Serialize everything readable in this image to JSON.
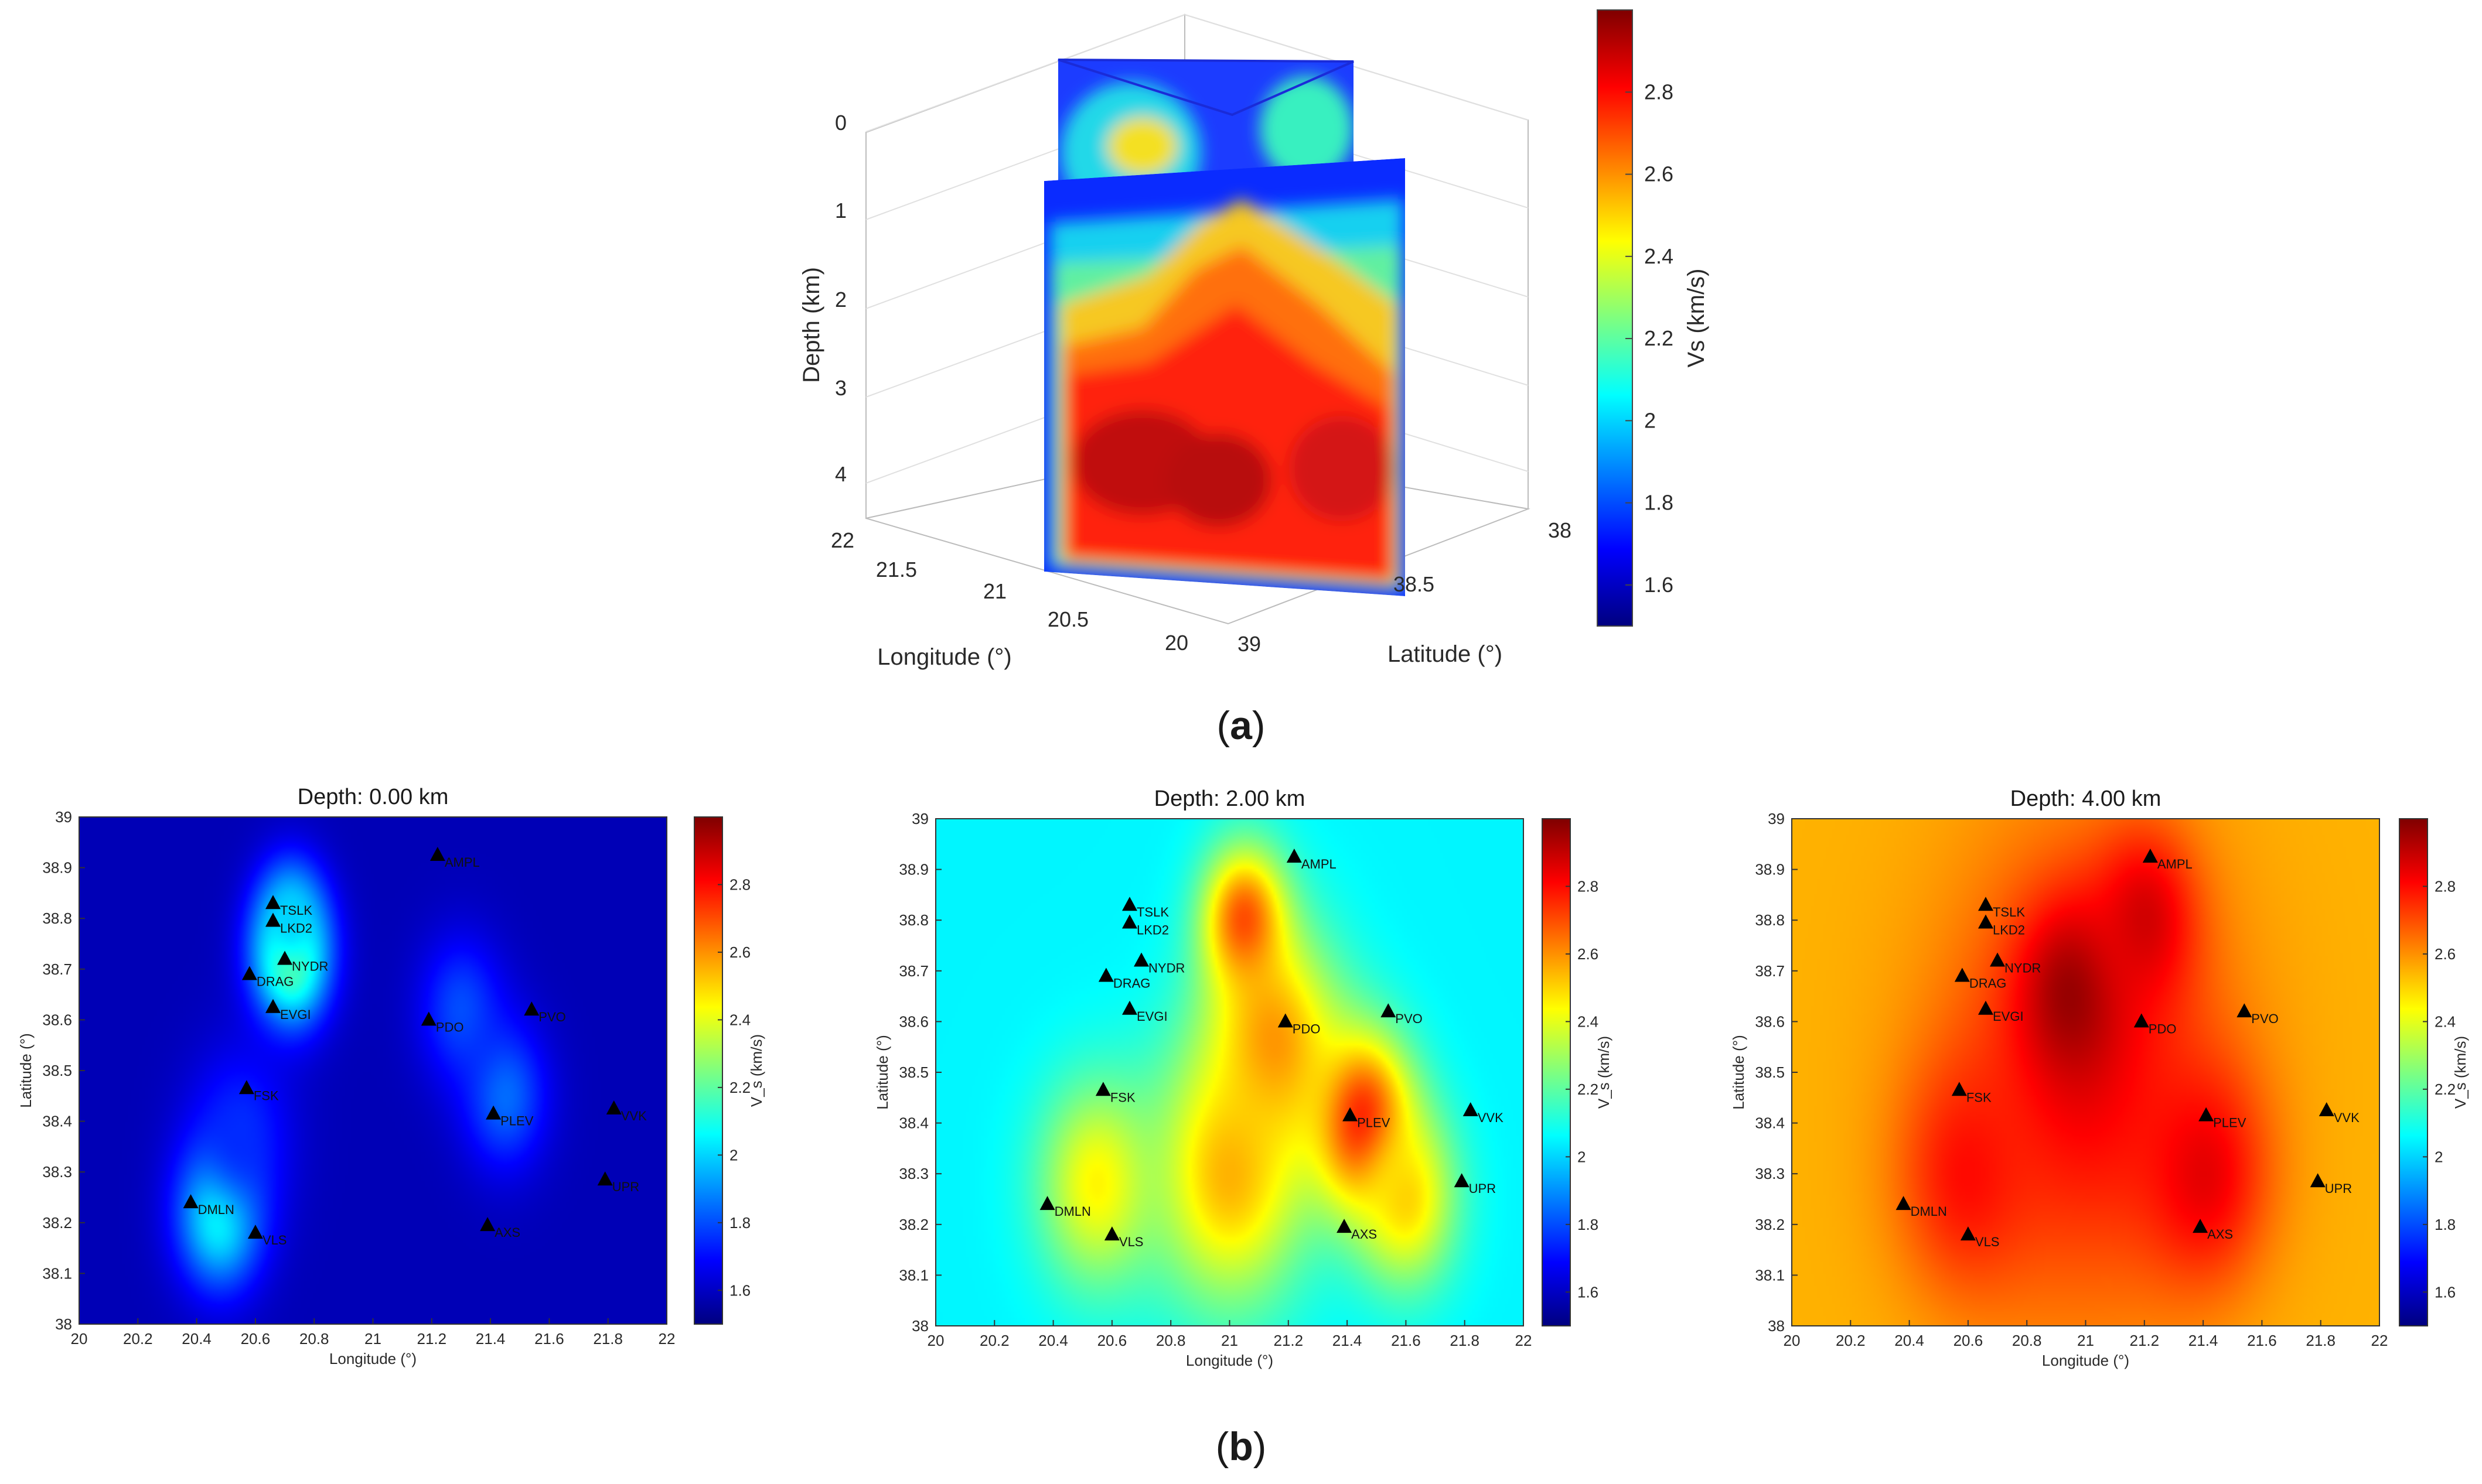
{
  "panel_labels": {
    "a_open": "(",
    "a_letter": "a",
    "a_close": ")",
    "b_open": "(",
    "b_letter": "b",
    "b_close": ")"
  },
  "colormap": {
    "name": "jet",
    "stops": [
      "#00007f",
      "#0000ff",
      "#007fff",
      "#00ffff",
      "#7fff7f",
      "#ffff00",
      "#ff7f00",
      "#ff0000",
      "#7f0000"
    ]
  },
  "colors": {
    "marker": "#000000",
    "grid": "#d8d8d8",
    "axis": "#444444"
  },
  "chart_data": [
    {
      "id": "a",
      "type": "3d-slice",
      "title": "",
      "xlabel": "Longitude (°)",
      "ylabel": "Latitude (°)",
      "zlabel": "Depth (km)",
      "longitude_ticks": [
        "22",
        "21.5",
        "21",
        "20.5",
        "20"
      ],
      "latitude_ticks": [
        "38",
        "38.5",
        "39"
      ],
      "depth_ticks": [
        "0",
        "1",
        "2",
        "3",
        "4"
      ],
      "xlim": [
        20,
        22
      ],
      "ylim": [
        38,
        39
      ],
      "zlim": [
        0,
        4.4
      ],
      "colorbar": {
        "label": "Vs (km/s)",
        "ticks": [
          "1.6",
          "1.8",
          "2",
          "2.2",
          "2.4",
          "2.6",
          "2.8"
        ],
        "range": [
          1.5,
          3.0
        ]
      }
    },
    {
      "id": "b1",
      "type": "heatmap",
      "title": "Depth: 0.00 km",
      "xlabel": "Longitude (°)",
      "ylabel": "Latitude (°)",
      "xlim": [
        20,
        22
      ],
      "ylim": [
        38,
        39
      ],
      "xticks": [
        "20",
        "20.2",
        "20.4",
        "20.6",
        "20.8",
        "21",
        "21.2",
        "21.4",
        "21.6",
        "21.8",
        "22"
      ],
      "yticks": [
        "38",
        "38.1",
        "38.2",
        "38.3",
        "38.4",
        "38.5",
        "38.6",
        "38.7",
        "38.8",
        "38.9",
        "39"
      ],
      "background_vs": 1.58,
      "anomalies": [
        {
          "lon": 20.72,
          "lat": 38.72,
          "vs": 2.3,
          "sigma": 0.09
        },
        {
          "lon": 20.72,
          "lat": 38.8,
          "vs": 2.0,
          "sigma": 0.08
        },
        {
          "lon": 20.48,
          "lat": 38.22,
          "vs": 2.15,
          "sigma": 0.1
        },
        {
          "lon": 21.45,
          "lat": 38.45,
          "vs": 1.85,
          "sigma": 0.1
        },
        {
          "lon": 21.3,
          "lat": 38.62,
          "vs": 1.8,
          "sigma": 0.1
        },
        {
          "lon": 20.55,
          "lat": 38.38,
          "vs": 1.75,
          "sigma": 0.12
        }
      ],
      "colorbar": {
        "label": "V_s (km/s)",
        "ticks": [
          "1.6",
          "1.8",
          "2",
          "2.2",
          "2.4",
          "2.6",
          "2.8"
        ],
        "range": [
          1.5,
          3.0
        ]
      }
    },
    {
      "id": "b2",
      "type": "heatmap",
      "title": "Depth: 2.00 km",
      "xlabel": "Longitude (°)",
      "ylabel": "Latitude (°)",
      "xlim": [
        20,
        22
      ],
      "ylim": [
        38,
        39
      ],
      "xticks": [
        "20",
        "20.2",
        "20.4",
        "20.6",
        "20.8",
        "21",
        "21.2",
        "21.4",
        "21.6",
        "21.8",
        "22"
      ],
      "yticks": [
        "38",
        "38.1",
        "38.2",
        "38.3",
        "38.4",
        "38.5",
        "38.6",
        "38.7",
        "38.8",
        "38.9",
        "39"
      ],
      "background_vs": 2.05,
      "anomalies": [
        {
          "lon": 21.45,
          "lat": 38.4,
          "vs": 2.85,
          "sigma": 0.12
        },
        {
          "lon": 21.15,
          "lat": 38.55,
          "vs": 2.6,
          "sigma": 0.16
        },
        {
          "lon": 21.0,
          "lat": 38.3,
          "vs": 2.55,
          "sigma": 0.18
        },
        {
          "lon": 20.55,
          "lat": 38.28,
          "vs": 2.45,
          "sigma": 0.14
        },
        {
          "lon": 21.05,
          "lat": 38.8,
          "vs": 2.7,
          "sigma": 0.1
        },
        {
          "lon": 21.6,
          "lat": 38.25,
          "vs": 2.5,
          "sigma": 0.12
        }
      ],
      "colorbar": {
        "label": "V_s (km/s)",
        "ticks": [
          "1.6",
          "1.8",
          "2",
          "2.2",
          "2.4",
          "2.6",
          "2.8"
        ],
        "range": [
          1.5,
          3.0
        ]
      }
    },
    {
      "id": "b3",
      "type": "heatmap",
      "title": "Depth: 4.00 km",
      "xlabel": "Longitude (°)",
      "ylabel": "Latitude (°)",
      "xlim": [
        20,
        22
      ],
      "ylim": [
        38,
        39
      ],
      "xticks": [
        "20",
        "20.2",
        "20.4",
        "20.6",
        "20.8",
        "21",
        "21.2",
        "21.4",
        "21.6",
        "21.8",
        "22"
      ],
      "yticks": [
        "38",
        "38.1",
        "38.2",
        "38.3",
        "38.4",
        "38.5",
        "38.6",
        "38.7",
        "38.8",
        "38.9",
        "39"
      ],
      "background_vs": 2.55,
      "anomalies": [
        {
          "lon": 21.0,
          "lat": 38.5,
          "vs": 2.82,
          "sigma": 0.32
        },
        {
          "lon": 20.95,
          "lat": 38.65,
          "vs": 2.97,
          "sigma": 0.12
        },
        {
          "lon": 21.2,
          "lat": 38.8,
          "vs": 2.88,
          "sigma": 0.12
        },
        {
          "lon": 21.4,
          "lat": 38.3,
          "vs": 2.85,
          "sigma": 0.15
        },
        {
          "lon": 20.6,
          "lat": 38.3,
          "vs": 2.8,
          "sigma": 0.16
        }
      ],
      "colorbar": {
        "label": "V_s (km/s)",
        "ticks": [
          "1.6",
          "1.8",
          "2",
          "2.2",
          "2.4",
          "2.6",
          "2.8"
        ],
        "range": [
          1.5,
          3.0
        ]
      }
    }
  ],
  "stations": [
    {
      "name": "AMPL",
      "lon": 21.22,
      "lat": 38.925
    },
    {
      "name": "TSLK",
      "lon": 20.66,
      "lat": 38.83
    },
    {
      "name": "LKD2",
      "lon": 20.66,
      "lat": 38.795
    },
    {
      "name": "NYDR",
      "lon": 20.7,
      "lat": 38.72
    },
    {
      "name": "DRAG",
      "lon": 20.58,
      "lat": 38.69
    },
    {
      "name": "EVGI",
      "lon": 20.66,
      "lat": 38.625
    },
    {
      "name": "PDO",
      "lon": 21.19,
      "lat": 38.6
    },
    {
      "name": "PVO",
      "lon": 21.54,
      "lat": 38.62
    },
    {
      "name": "FSK",
      "lon": 20.57,
      "lat": 38.465
    },
    {
      "name": "PLEV",
      "lon": 21.41,
      "lat": 38.415
    },
    {
      "name": "VVK",
      "lon": 21.82,
      "lat": 38.425
    },
    {
      "name": "UPR",
      "lon": 21.79,
      "lat": 38.285
    },
    {
      "name": "DMLN",
      "lon": 20.38,
      "lat": 38.24
    },
    {
      "name": "VLS",
      "lon": 20.6,
      "lat": 38.18
    },
    {
      "name": "AXS",
      "lon": 21.39,
      "lat": 38.195
    }
  ]
}
